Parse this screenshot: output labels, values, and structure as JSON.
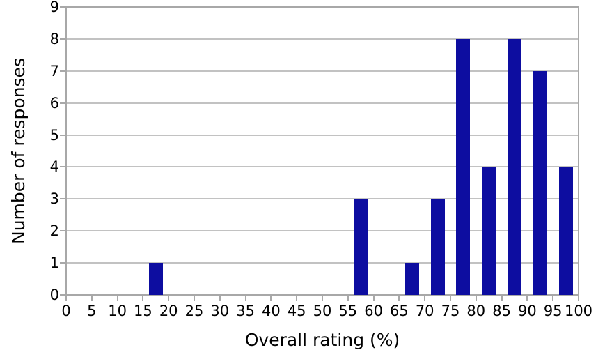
{
  "chart_data": {
    "type": "bar",
    "xlabel": "Overall rating (%)",
    "ylabel": "Number of responses",
    "x": [
      17.5,
      57.5,
      67.5,
      72.5,
      77.5,
      82.5,
      87.5,
      92.5,
      97.5
    ],
    "values": [
      1,
      3,
      1,
      3,
      8,
      4,
      8,
      7,
      4
    ],
    "xlim": [
      0,
      100
    ],
    "ylim": [
      0,
      9
    ],
    "x_ticks": [
      0,
      5,
      10,
      15,
      20,
      25,
      30,
      35,
      40,
      45,
      50,
      55,
      60,
      65,
      70,
      75,
      80,
      85,
      90,
      95,
      100
    ],
    "y_ticks": [
      0,
      1,
      2,
      3,
      4,
      5,
      6,
      7,
      8,
      9
    ],
    "grid": "horizontal",
    "legend": "none",
    "colors": {
      "bar": "#0d0da0",
      "grid": "#c2c2c2",
      "axis": "#a8a8a8",
      "text": "#000000",
      "background": "#ffffff"
    }
  }
}
